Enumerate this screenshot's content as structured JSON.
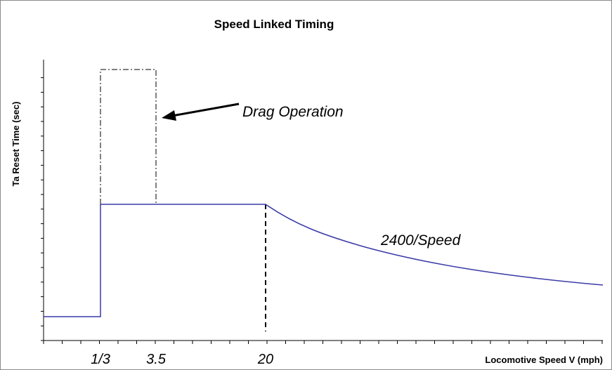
{
  "title": "Speed Linked Timing",
  "y_axis_label": "Ta Reset Time (sec)",
  "x_axis_label": "Locomotive Speed V (mph)",
  "x_labels": [
    "1/3",
    "3.5",
    "20"
  ],
  "annotations": {
    "drag": "Drag Operation",
    "curve": "2400/Speed"
  }
}
